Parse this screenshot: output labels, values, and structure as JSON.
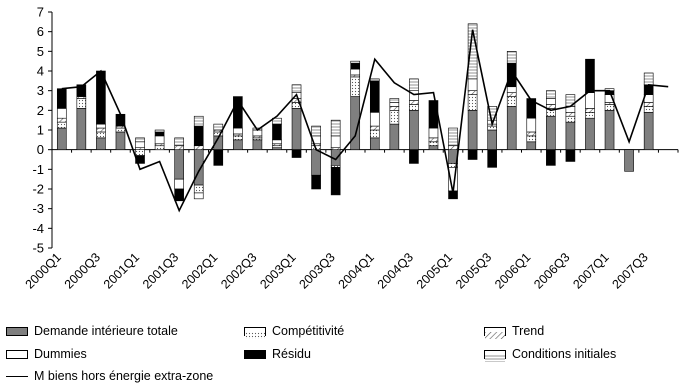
{
  "chart_data": {
    "type": "bar",
    "stacked": true,
    "categories": [
      "2000Q1",
      "2000Q2",
      "2000Q3",
      "2000Q4",
      "2001Q1",
      "2001Q2",
      "2001Q3",
      "2001Q4",
      "2002Q1",
      "2002Q2",
      "2002Q3",
      "2002Q4",
      "2003Q1",
      "2003Q2",
      "2003Q3",
      "2003Q4",
      "2004Q1",
      "2004Q2",
      "2004Q3",
      "2004Q4",
      "2005Q1",
      "2005Q2",
      "2005Q3",
      "2005Q4",
      "2006Q1",
      "2006Q2",
      "2006Q3",
      "2006Q4",
      "2007Q1",
      "2007Q2",
      "2007Q3",
      "2007Q4"
    ],
    "xtick_labels": [
      "2000Q1",
      "2000Q3",
      "2001Q1",
      "2001Q3",
      "2002Q1",
      "2002Q3",
      "2003Q1",
      "2003Q3",
      "2004Q1",
      "2004Q3",
      "2005Q1",
      "2005Q3",
      "2006Q1",
      "2006Q3",
      "2007Q1",
      "2007Q3"
    ],
    "series": [
      {
        "name": "Demande intérieure totale",
        "color": "#7f7f7f",
        "values": [
          1.1,
          2.1,
          0.6,
          0.9,
          0.0,
          0.0,
          -1.5,
          -1.8,
          0.7,
          0.5,
          0.5,
          0.1,
          2.1,
          -1.3,
          -0.8,
          2.7,
          0.6,
          1.3,
          2.0,
          0.2,
          -0.7,
          2.0,
          1.0,
          2.2,
          0.4,
          1.7,
          1.4,
          1.6,
          2.0,
          -1.1,
          1.9,
          0.0
        ]
      },
      {
        "name": "Compétitivité",
        "color": "#e6e6e6",
        "values": [
          0.3,
          0.5,
          0.3,
          0.2,
          -0.3,
          0.2,
          0.0,
          -0.4,
          0.2,
          0.2,
          0.1,
          0.1,
          0.3,
          0.2,
          -0.1,
          1.0,
          0.4,
          0.7,
          0.3,
          0.2,
          -0.2,
          0.8,
          0.2,
          0.5,
          0.3,
          0.4,
          0.3,
          0.3,
          0.3,
          0.0,
          0.3,
          0.0
        ]
      },
      {
        "name": "Trend",
        "color": "#cccccc",
        "values": [
          0.2,
          0.1,
          0.2,
          0.1,
          0.1,
          0.1,
          0.2,
          0.2,
          0.1,
          0.1,
          0.1,
          0.1,
          0.2,
          0.1,
          0.1,
          0.1,
          0.2,
          0.2,
          0.2,
          0.2,
          0.2,
          0.2,
          0.1,
          0.2,
          0.2,
          0.2,
          0.2,
          0.2,
          0.1,
          0.0,
          0.2,
          0.0
        ]
      },
      {
        "name": "Dummies",
        "color": "#ffffff",
        "values": [
          0.5,
          0.0,
          0.2,
          0.0,
          0.3,
          0.4,
          -0.5,
          -0.3,
          0.0,
          0.3,
          0.3,
          0.2,
          0.3,
          0.4,
          0.6,
          0.3,
          0.7,
          0.2,
          0.5,
          0.5,
          -1.2,
          0.6,
          0.2,
          0.3,
          0.7,
          0.3,
          0.3,
          0.8,
          0.4,
          0.0,
          0.4,
          0.0
        ]
      },
      {
        "name": "Résidu",
        "color": "#000000",
        "values": [
          1.0,
          0.6,
          2.7,
          0.6,
          -0.4,
          0.2,
          -0.6,
          1.0,
          -0.8,
          1.6,
          0.0,
          0.8,
          -0.4,
          -0.7,
          -1.4,
          0.3,
          1.6,
          0.0,
          -0.7,
          1.4,
          -0.4,
          -0.5,
          -0.9,
          1.2,
          1.0,
          -0.8,
          -0.6,
          1.7,
          0.2,
          0.0,
          0.5,
          0.0
        ]
      },
      {
        "name": "Conditions initiales",
        "color": "#f2f2f2",
        "values": [
          0.0,
          0.0,
          0.0,
          0.0,
          0.2,
          0.1,
          0.4,
          0.5,
          0.3,
          0.0,
          0.1,
          0.3,
          0.4,
          0.5,
          0.8,
          0.1,
          0.1,
          0.2,
          0.6,
          0.0,
          0.9,
          2.8,
          0.7,
          0.6,
          0.0,
          0.4,
          0.6,
          0.0,
          0.1,
          0.0,
          0.6,
          0.0
        ]
      }
    ],
    "line": {
      "name": "M biens hors énergie extra-zone",
      "values": [
        3.1,
        3.2,
        4.0,
        1.8,
        -1.0,
        -0.6,
        -3.1,
        -1.1,
        0.6,
        2.5,
        1.0,
        1.7,
        2.8,
        0.0,
        -0.5,
        0.7,
        4.6,
        3.4,
        2.8,
        2.9,
        -2.2,
        6.1,
        1.3,
        4.0,
        2.5,
        2.0,
        2.2,
        3.0,
        3.0,
        0.4,
        3.3,
        3.2
      ]
    },
    "ylim": [
      -5,
      7
    ],
    "yticks": [
      -5,
      -4,
      -3,
      -2,
      -1,
      0,
      1,
      2,
      3,
      4,
      5,
      6,
      7
    ],
    "grid": false,
    "legend_position": "bottom"
  },
  "legend": {
    "items": [
      {
        "label": "Demande intérieure totale",
        "swatch": "dark-gray"
      },
      {
        "label": "Compétitivité",
        "swatch": "dotted"
      },
      {
        "label": "Trend",
        "swatch": "hatched"
      },
      {
        "label": "Dummies",
        "swatch": "white"
      },
      {
        "label": "Résidu",
        "swatch": "black"
      },
      {
        "label": "Conditions initiales",
        "swatch": "striped"
      }
    ],
    "line_label": "M biens hors énergie extra-zone"
  }
}
